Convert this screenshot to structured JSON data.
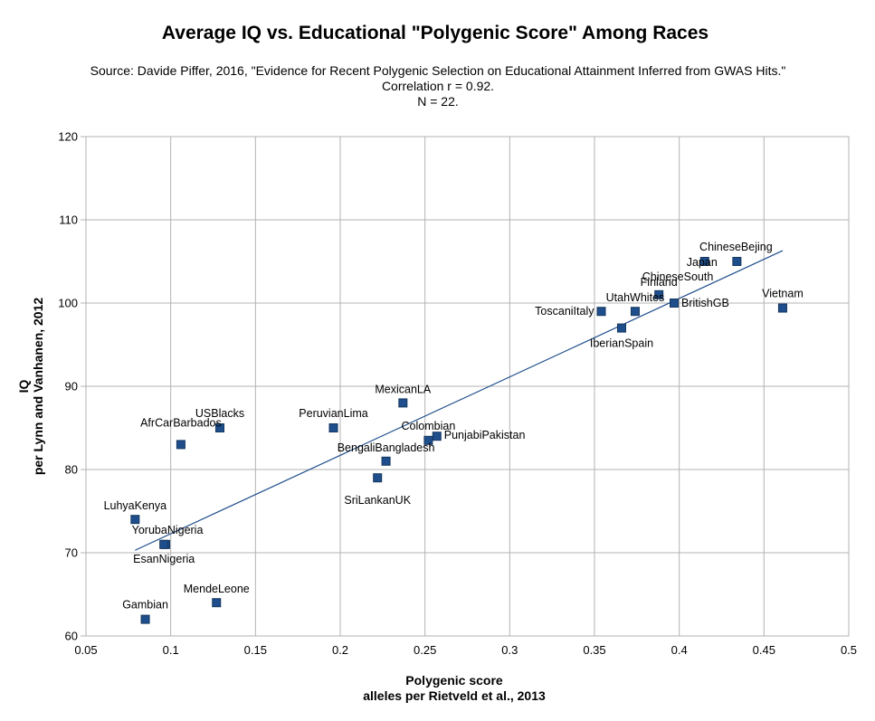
{
  "chart_data": {
    "type": "scatter",
    "title": "Average IQ vs. Educational \"Polygenic Score\" Among Races",
    "subtitle_lines": [
      "Source: Davide Piffer, 2016, \"Evidence for Recent Polygenic Selection on Educational Attainment Inferred from GWAS Hits.\"",
      "Correlation r = 0.92.",
      "N = 22."
    ],
    "xlabel_lines": [
      "Polygenic score",
      "alleles per Rietveld et al., 2013"
    ],
    "ylabel_lines": [
      "IQ",
      "per Lynn and Vanhanen, 2012"
    ],
    "xlim": [
      0.05,
      0.5
    ],
    "ylim": [
      60,
      120
    ],
    "x_ticks": [
      "0.05",
      "0.1",
      "0.15",
      "0.2",
      "0.25",
      "0.3",
      "0.35",
      "0.4",
      "0.45",
      "0.5"
    ],
    "y_ticks": [
      "60",
      "70",
      "80",
      "90",
      "100",
      "110",
      "120"
    ],
    "grid": true,
    "legend": "none",
    "marker_color": "#1f4e8c",
    "trendline_color": "#1f4e8c",
    "trendline": {
      "x": [
        0.079,
        0.461
      ],
      "y": [
        70.3,
        106.3
      ]
    },
    "points": [
      {
        "label": "Gambian",
        "x": 0.085,
        "y": 62
      },
      {
        "label": "LuhyaKenya",
        "x": 0.079,
        "y": 74
      },
      {
        "label": "YorubaNigeria",
        "x": 0.097,
        "y": 71
      },
      {
        "label": "EsanNigeria",
        "x": 0.096,
        "y": 71
      },
      {
        "label": "AfrCarBarbados",
        "x": 0.106,
        "y": 83
      },
      {
        "label": "MendeLeone",
        "x": 0.127,
        "y": 64
      },
      {
        "label": "USBlacks",
        "x": 0.129,
        "y": 85
      },
      {
        "label": "PeruvianLima",
        "x": 0.196,
        "y": 85
      },
      {
        "label": "SriLankanUK",
        "x": 0.222,
        "y": 79
      },
      {
        "label": "BengaliBangladesh",
        "x": 0.227,
        "y": 81
      },
      {
        "label": "MexicanLA",
        "x": 0.237,
        "y": 88
      },
      {
        "label": "Colombian",
        "x": 0.252,
        "y": 83.5
      },
      {
        "label": "PunjabiPakistan",
        "x": 0.257,
        "y": 84
      },
      {
        "label": "ToscaniItaly",
        "x": 0.354,
        "y": 99
      },
      {
        "label": "IberianSpain",
        "x": 0.366,
        "y": 97
      },
      {
        "label": "UtahWhites",
        "x": 0.374,
        "y": 99
      },
      {
        "label": "Finland",
        "x": 0.388,
        "y": 101
      },
      {
        "label": "BritishGB",
        "x": 0.397,
        "y": 100
      },
      {
        "label": "ChineseSouth",
        "x": 0.397,
        "y": 100
      },
      {
        "label": "Japan",
        "x": 0.415,
        "y": 105
      },
      {
        "label": "ChineseBejing",
        "x": 0.434,
        "y": 105
      },
      {
        "label": "Vietnam",
        "x": 0.461,
        "y": 99.4
      }
    ]
  }
}
